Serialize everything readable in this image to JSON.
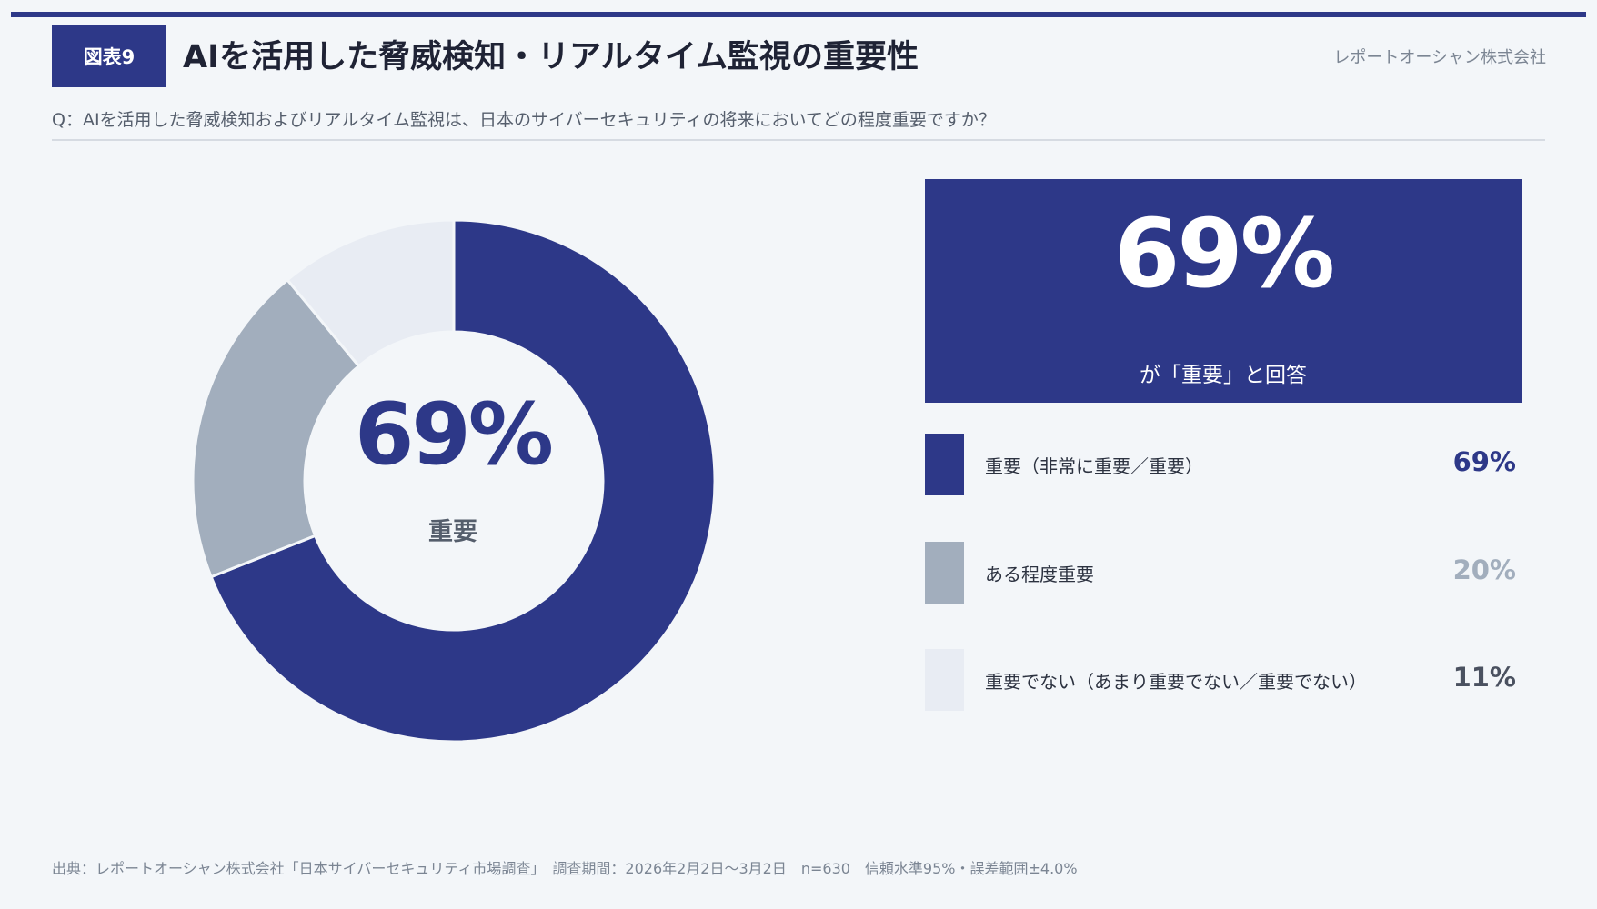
{
  "header": {
    "figure_label": "図表9",
    "title": "AIを活用した脅威検知・リアルタイム監視の重要性",
    "company": "レポートオーシャン株式会社"
  },
  "question": "Q：AIを活用した脅威検知およびリアルタイム監視は、日本のサイバーセキュリティの将来においてどの程度重要ですか？",
  "center": {
    "value": "69%",
    "label": "重要"
  },
  "highlight": {
    "value": "69%",
    "caption": "が「重要」と回答"
  },
  "legend": [
    {
      "label": "重要（非常に重要／重要）",
      "value": "69%"
    },
    {
      "label": "ある程度重要",
      "value": "20%"
    },
    {
      "label": "重要でない（あまり重要でない／重要でない）",
      "value": "11%"
    }
  ],
  "colors": {
    "accent": "#2d3888",
    "slices": [
      "#2d3888",
      "#a2aebd",
      "#e8ecf3"
    ],
    "value_text": [
      "#2d3888",
      "#a2aebd",
      "#4a5160"
    ]
  },
  "chart_data": {
    "type": "pie",
    "categories": [
      "重要（非常に重要／重要）",
      "ある程度重要",
      "重要でない（あまり重要でない／重要でない）"
    ],
    "values": [
      69,
      20,
      11
    ],
    "unit": "%",
    "donut": true,
    "center_text": "69%"
  },
  "footer": "出典：レポートオーシャン株式会社「日本サイバーセキュリティ市場調査」　調査期間：2026年2月2日〜3月2日　n=630　信頼水準95%・誤差範囲±4.0%"
}
